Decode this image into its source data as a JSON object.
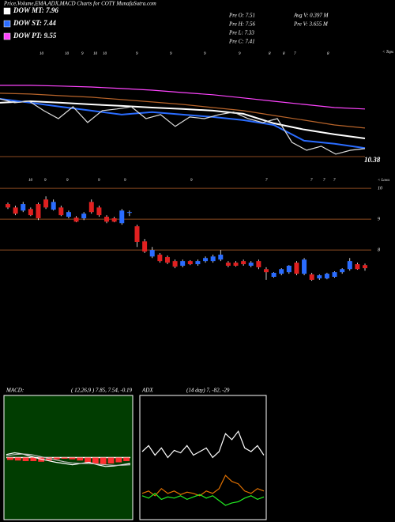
{
  "header": {
    "title": "Price,Volume,EMA,ADX,MACD Charts for COTY MunafaSutra.com",
    "info": [
      "Pre O: 7.51",
      "Pre H: 7.56",
      "Pre L: 7.33",
      "Pre C: 7.41",
      "Avg V: 0.397 M",
      "Pre V: 3.655 M"
    ],
    "tops": "< Tops",
    "lows": "< Lows",
    "last": "10.38",
    "upper_marks": [
      "10",
      "10",
      "9",
      "10",
      "10",
      "9",
      "9",
      "9",
      "9",
      "8",
      "8",
      "7",
      "8"
    ],
    "lower_marks": [
      "10",
      "9",
      "9",
      "9",
      "9",
      "9",
      "7",
      "7",
      "7",
      "7"
    ]
  },
  "chart_data": [
    {
      "type": "line",
      "ylim": [
        6.68,
        11.38
      ],
      "series": [
        {
          "color": "#ff44ff",
          "values": [
            10.83,
            10.83,
            10.79,
            10.74,
            10.66,
            10.57,
            10.44,
            10.32,
            10.15,
            9.97,
            9.8,
            9.63,
            9.55
          ]
        },
        {
          "color": "#b8642a",
          "values": [
            10.4,
            10.36,
            10.27,
            10.19,
            10.06,
            9.93,
            9.8,
            9.63,
            9.46,
            9.2,
            8.95,
            8.69,
            8.52
          ]
        },
        {
          "name": "DOW MT: 7.96",
          "color": "#ffffff",
          "values": [
            9.89,
            9.97,
            9.89,
            9.8,
            9.72,
            9.63,
            9.55,
            9.46,
            9.29,
            8.78,
            8.44,
            8.18,
            7.96
          ]
        },
        {
          "name": "DOW ST: 7.44",
          "color": "#2a6cff",
          "values": [
            10.1,
            9.89,
            9.67,
            9.46,
            9.25,
            9.38,
            9.25,
            9.12,
            8.95,
            8.69,
            7.84,
            7.67,
            7.44
          ]
        },
        {
          "color": "#dddddd",
          "values": [
            10.1,
            9.89,
            9.97,
            9.46,
            9.03,
            9.67,
            8.82,
            9.46,
            9.55,
            9.67,
            9.03,
            9.25,
            8.61,
            9.12,
            9.03,
            9.25,
            9.38,
            9.03,
            8.82,
            9.03,
            7.75,
            7.32,
            7.54,
            7.11,
            7.32,
            7.41
          ]
        },
        {
          "name": "DOW PT: 9.55",
          "color": "#ff44ff",
          "values": []
        }
      ]
    },
    {
      "type": "candlestick",
      "ylim": [
        4.05,
        10.21
      ],
      "yticks": [
        8,
        9,
        10
      ],
      "up_color": "#2a6cff",
      "down_color": "#e02020",
      "open": [
        9.49,
        9.38,
        9.28,
        9.33,
        9.49,
        9.64,
        9.31,
        9.38,
        9.08,
        9.05,
        9.03,
        9.56,
        9.38,
        9.08,
        9.03,
        8.87,
        9.21,
        8.77,
        8.28,
        7.79,
        7.85,
        7.77,
        7.64,
        7.49,
        7.64,
        7.54,
        7.64,
        7.64,
        7.69,
        7.59,
        7.59,
        7.64,
        7.49,
        7.64,
        7.38,
        7.13,
        7.23,
        7.28,
        7.59,
        7.23,
        7.21,
        7.08,
        7.08,
        7.13,
        7.28,
        7.38,
        7.54,
        7.51
      ],
      "high": [
        9.54,
        9.44,
        9.56,
        9.38,
        9.54,
        9.74,
        9.64,
        9.44,
        9.28,
        9.1,
        9.23,
        9.64,
        9.44,
        9.13,
        9.08,
        9.33,
        9.28,
        8.82,
        8.36,
        8.1,
        7.9,
        7.82,
        7.69,
        7.69,
        7.67,
        7.69,
        7.79,
        7.85,
        8.0,
        7.64,
        7.64,
        7.69,
        7.64,
        7.69,
        7.44,
        7.28,
        7.41,
        7.51,
        7.64,
        7.74,
        7.26,
        7.21,
        7.26,
        7.31,
        7.41,
        7.74,
        7.59,
        7.56
      ],
      "low": [
        9.33,
        9.13,
        9.23,
        9.1,
        8.97,
        9.33,
        9.28,
        9.1,
        9.03,
        8.9,
        8.97,
        9.18,
        9.08,
        8.87,
        8.9,
        8.82,
        9.1,
        8.1,
        7.9,
        7.74,
        7.59,
        7.54,
        7.41,
        7.44,
        7.51,
        7.49,
        7.59,
        7.59,
        7.64,
        7.44,
        7.46,
        7.49,
        7.44,
        7.38,
        7.03,
        7.1,
        7.18,
        7.23,
        7.18,
        7.18,
        7.0,
        7.03,
        7.05,
        7.1,
        7.23,
        7.33,
        7.36,
        7.33
      ],
      "close": [
        9.38,
        9.18,
        9.49,
        9.13,
        9.03,
        9.38,
        9.56,
        9.13,
        9.23,
        8.92,
        9.18,
        9.23,
        9.13,
        8.92,
        8.92,
        9.28,
        9.23,
        8.26,
        7.95,
        8.0,
        7.64,
        7.59,
        7.46,
        7.64,
        7.54,
        7.64,
        7.74,
        7.79,
        7.85,
        7.49,
        7.49,
        7.54,
        7.59,
        7.44,
        7.28,
        7.26,
        7.38,
        7.49,
        7.23,
        7.69,
        7.03,
        7.18,
        7.23,
        7.28,
        7.38,
        7.64,
        7.38,
        7.41
      ]
    },
    {
      "type": "line",
      "title": "MACD:",
      "subtitle": "( 12,26,9 ) 7.85, 7.54, -0.19",
      "ylim": [
        -1,
        1
      ],
      "bars": {
        "color": "#ff3030",
        "values": [
          -0.04,
          -0.05,
          -0.06,
          -0.06,
          -0.07,
          -0.05,
          -0.03,
          -0.02,
          -0.03,
          -0.05,
          -0.08,
          -0.1,
          -0.11,
          -0.1,
          -0.08,
          -0.06
        ]
      },
      "series": [
        {
          "color": "#ffffff",
          "values": [
            0.05,
            0.08,
            0.06,
            0.02,
            -0.02,
            -0.05,
            -0.08,
            -0.1,
            -0.12,
            -0.1,
            -0.08,
            -0.12,
            -0.15,
            -0.14,
            -0.12,
            -0.1
          ]
        },
        {
          "color": "#bbbbbb",
          "values": [
            0.03,
            0.05,
            0.06,
            0.05,
            0.02,
            -0.01,
            -0.04,
            -0.07,
            -0.09,
            -0.1,
            -0.1,
            -0.11,
            -0.12,
            -0.13,
            -0.13,
            -0.12
          ]
        }
      ]
    },
    {
      "type": "line",
      "title": "ADX",
      "subtitle": "(14 day) 7, -82, -29",
      "ylim": [
        0,
        100
      ],
      "series": [
        {
          "color": "#ffffff",
          "values": [
            55,
            60,
            52,
            58,
            50,
            56,
            54,
            60,
            52,
            55,
            58,
            50,
            55,
            70,
            65,
            72,
            58,
            55,
            60,
            52
          ]
        },
        {
          "color": "#e07000",
          "values": [
            20,
            22,
            18,
            24,
            20,
            22,
            19,
            21,
            20,
            18,
            22,
            20,
            24,
            35,
            30,
            28,
            22,
            20,
            24,
            22
          ]
        },
        {
          "color": "#22ee22",
          "values": [
            18,
            16,
            20,
            15,
            17,
            16,
            18,
            15,
            17,
            19,
            16,
            18,
            14,
            10,
            12,
            13,
            16,
            18,
            15,
            17
          ]
        }
      ]
    }
  ]
}
